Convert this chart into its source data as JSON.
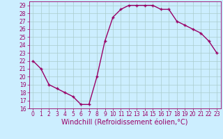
{
  "x": [
    0,
    1,
    2,
    3,
    4,
    5,
    6,
    7,
    8,
    9,
    10,
    11,
    12,
    13,
    14,
    15,
    16,
    17,
    18,
    19,
    20,
    21,
    22,
    23
  ],
  "y": [
    22,
    21,
    19,
    18.5,
    18,
    17.5,
    16.5,
    16.5,
    20,
    24.5,
    27.5,
    28.5,
    29,
    29,
    29,
    29,
    28.5,
    28.5,
    27,
    26.5,
    26,
    25.5,
    24.5,
    23
  ],
  "line_color": "#990066",
  "marker": "+",
  "bg_color": "#cceeff",
  "grid_color": "#aacccc",
  "xlabel": "Windchill (Refroidissement éolien,°C)",
  "xlabel_color": "#990066",
  "ylim": [
    16,
    29.5
  ],
  "xlim": [
    -0.5,
    23.5
  ],
  "yticks": [
    16,
    17,
    18,
    19,
    20,
    21,
    22,
    23,
    24,
    25,
    26,
    27,
    28,
    29
  ],
  "xticks": [
    0,
    1,
    2,
    3,
    4,
    5,
    6,
    7,
    8,
    9,
    10,
    11,
    12,
    13,
    14,
    15,
    16,
    17,
    18,
    19,
    20,
    21,
    22,
    23
  ],
  "tick_color": "#990066",
  "tick_fontsize": 5.5,
  "xlabel_fontsize": 7.0,
  "linewidth": 1.0,
  "markersize": 3.5,
  "markeredgewidth": 1.0
}
